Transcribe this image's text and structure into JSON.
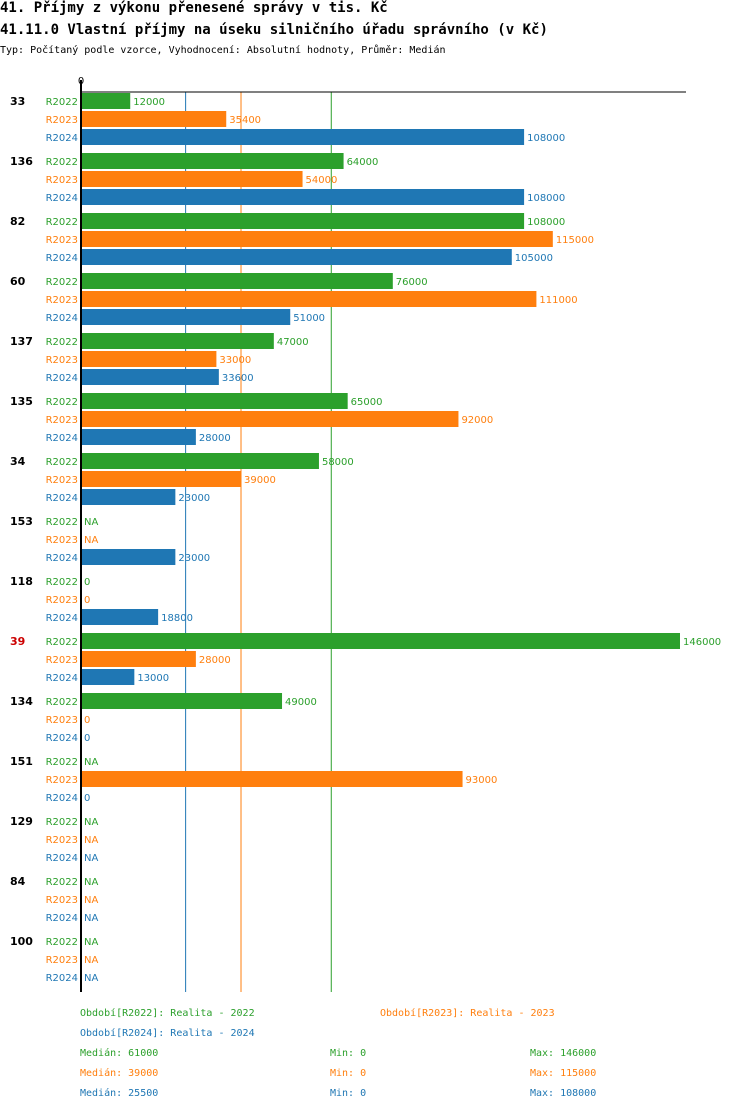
{
  "title": "41. Příjmy z výkonu přenesené správy v tis. Kč",
  "subtitle": "41.11.0 Vlastní příjmy na úseku silničního úřadu správního (v Kč)",
  "description": "Typ: Počítaný podle vzorce, Vyhodnocení: Absolutní hodnoty, Průměr: Medián",
  "colors": {
    "R2022": "#2ca02c",
    "R2023": "#ff7f0e",
    "R2024": "#1f77b4",
    "highlight": "#cc0000",
    "axis": "#000000"
  },
  "chart_data": {
    "type": "bar",
    "orientation": "horizontal",
    "xlim": [
      0,
      146000
    ],
    "axis_zero_label": "0",
    "highlighted_category": "39",
    "categories": [
      "33",
      "136",
      "82",
      "60",
      "137",
      "135",
      "34",
      "153",
      "118",
      "39",
      "134",
      "151",
      "129",
      "84",
      "100"
    ],
    "series": [
      {
        "name": "R2022",
        "labels": [
          "12000",
          "64000",
          "108000",
          "76000",
          "47000",
          "65000",
          "58000",
          "NA",
          "0",
          "146000",
          "49000",
          "NA",
          "NA",
          "NA",
          "NA"
        ],
        "values": [
          12000,
          64000,
          108000,
          76000,
          47000,
          65000,
          58000,
          null,
          0,
          146000,
          49000,
          null,
          null,
          null,
          null
        ]
      },
      {
        "name": "R2023",
        "labels": [
          "35400",
          "54000",
          "115000",
          "111000",
          "33000",
          "92000",
          "39000",
          "NA",
          "0",
          "28000",
          "0",
          "93000",
          "NA",
          "NA",
          "NA"
        ],
        "values": [
          35400,
          54000,
          115000,
          111000,
          33000,
          92000,
          39000,
          null,
          0,
          28000,
          0,
          93000,
          null,
          null,
          null
        ]
      },
      {
        "name": "R2024",
        "labels": [
          "108000",
          "108000",
          "105000",
          "51000",
          "33600",
          "28000",
          "23000",
          "23000",
          "18800",
          "13000",
          "0",
          "0",
          "NA",
          "NA",
          "NA"
        ],
        "values": [
          108000,
          108000,
          105000,
          51000,
          33600,
          28000,
          23000,
          23000,
          18800,
          13000,
          0,
          0,
          null,
          null,
          null
        ]
      }
    ],
    "reference_lines": [
      {
        "series": "R2024",
        "stat": "median",
        "value": 25500
      },
      {
        "series": "R2023",
        "stat": "median",
        "value": 39000
      },
      {
        "series": "R2022",
        "stat": "median",
        "value": 61000
      }
    ]
  },
  "legend": {
    "r2022": "Období[R2022]: Realita - 2022",
    "r2023": "Období[R2023]: Realita - 2023",
    "r2024": "Období[R2024]: Realita - 2024"
  },
  "stats": {
    "r2022": {
      "median": "Medián: 61000",
      "min": "Min: 0",
      "max": "Max: 146000"
    },
    "r2023": {
      "median": "Medián: 39000",
      "min": "Min: 0",
      "max": "Max: 115000"
    },
    "r2024": {
      "median": "Medián: 25500",
      "min": "Min: 0",
      "max": "Max: 108000"
    }
  }
}
